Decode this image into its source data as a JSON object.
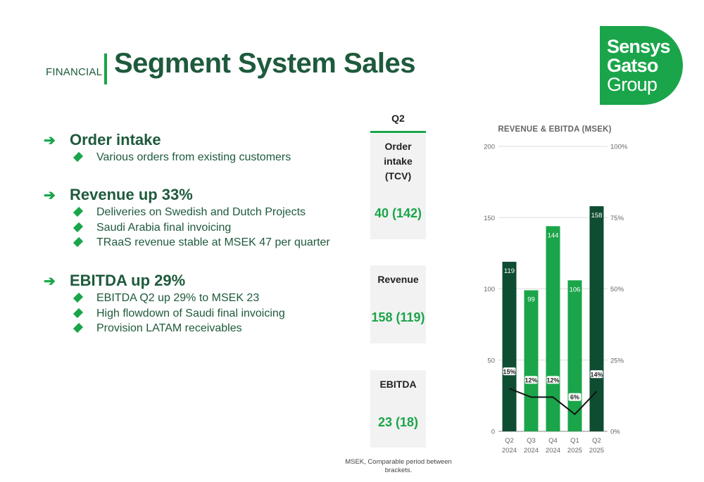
{
  "header": {
    "kicker": "FINANCIAL",
    "title": "Segment System Sales"
  },
  "logo": {
    "line1": "Sensys",
    "line2": "Gatso",
    "line3": "Group",
    "color": "#1aa54a"
  },
  "sections": [
    {
      "title": "Order intake",
      "bullets": [
        "Various orders from existing customers"
      ]
    },
    {
      "title": "Revenue up 33%",
      "bullets": [
        "Deliveries on Swedish and Dutch Projects",
        "Saudi Arabia final invoicing",
        "TRaaS revenue stable at MSEK 47 per quarter"
      ]
    },
    {
      "title": "EBITDA up 29%",
      "bullets": [
        "EBITDA Q2 up 29% to MSEK 23",
        "High flowdown of Saudi final invoicing",
        "Provision LATAM receivables"
      ]
    }
  ],
  "kpis": {
    "period": "Q2",
    "items": [
      {
        "label_lines": [
          "Order",
          "intake",
          "(TCV)"
        ],
        "value": "40 (142)"
      },
      {
        "label_lines": [
          "Revenue"
        ],
        "value": "158 (119)"
      },
      {
        "label_lines": [
          "EBITDA"
        ],
        "value": "23 (18)"
      }
    ],
    "footnote_lines": [
      "MSEK, Comparable period between",
      "brackets."
    ]
  },
  "colors": {
    "dark_green": "#1e5a3c",
    "bright_green": "#1aa54a",
    "bar_dark": "#0f4d33",
    "bar_bright": "#1aa54a"
  },
  "chart_data": {
    "type": "bar",
    "title": "REVENUE & EBITDA (MSEK)",
    "categories": [
      [
        "Q2",
        "2024"
      ],
      [
        "Q3",
        "2024"
      ],
      [
        "Q4",
        "2024"
      ],
      [
        "Q1",
        "2025"
      ],
      [
        "Q2",
        "2025"
      ]
    ],
    "series": [
      {
        "type": "bar",
        "values": [
          119,
          99,
          144,
          106,
          158
        ],
        "labels": [
          "119",
          "99",
          "144",
          "106",
          "158"
        ],
        "bar_colors": [
          "#0f4d33",
          "#1aa54a",
          "#1aa54a",
          "#1aa54a",
          "#0f4d33"
        ],
        "axis": "left"
      },
      {
        "type": "line",
        "values": [
          15,
          12,
          12,
          6,
          14
        ],
        "labels": [
          "15%",
          "12%",
          "12%",
          "6%",
          "14%"
        ],
        "axis": "right",
        "color": "#111111"
      }
    ],
    "ylim": [
      0,
      200
    ],
    "yticks": [
      "0",
      "50",
      "100",
      "150",
      "200"
    ],
    "y2lim": [
      0,
      100
    ],
    "y2ticks": [
      "0%",
      "25%",
      "50%",
      "75%",
      "100%"
    ],
    "grid": true,
    "legend": "none"
  }
}
